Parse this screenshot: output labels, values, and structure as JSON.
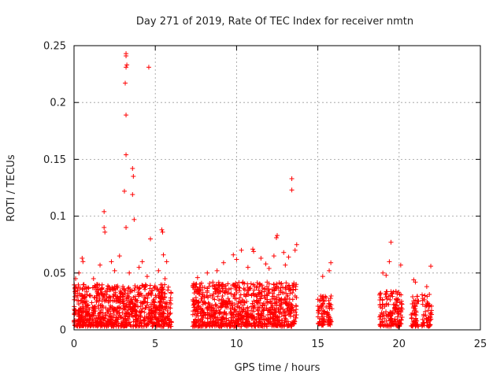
{
  "chart_data": {
    "type": "scatter",
    "title": "Day 271 of 2019, Rate Of TEC Index for receiver nmtn",
    "xlabel": "GPS time / hours",
    "ylabel": "ROTI / TECUs",
    "xlim": [
      0,
      25
    ],
    "ylim": [
      0,
      0.25
    ],
    "xticks": [
      0,
      5,
      10,
      15,
      20,
      25
    ],
    "xtick_labels": [
      "0",
      "5",
      "10",
      "15",
      "20",
      "25"
    ],
    "yticks": [
      0,
      0.05,
      0.1,
      0.15,
      0.2,
      0.25
    ],
    "ytick_labels": [
      "0",
      "0.05",
      "0.1",
      "0.15",
      "0.2",
      "0.25"
    ],
    "grid": true,
    "marker": "+",
    "marker_color": "#ff0000",
    "clusters": [
      {
        "x_range": [
          0.0,
          6.0
        ],
        "y_range": [
          0.003,
          0.04
        ],
        "count": 900
      },
      {
        "x_range": [
          7.3,
          13.7
        ],
        "y_range": [
          0.003,
          0.042
        ],
        "count": 900
      },
      {
        "x_range": [
          15.0,
          15.9
        ],
        "y_range": [
          0.004,
          0.03
        ],
        "count": 90
      },
      {
        "x_range": [
          18.8,
          20.2
        ],
        "y_range": [
          0.003,
          0.035
        ],
        "count": 160
      },
      {
        "x_range": [
          20.7,
          21.2
        ],
        "y_range": [
          0.003,
          0.03
        ],
        "count": 50
      },
      {
        "x_range": [
          21.4,
          22.0
        ],
        "y_range": [
          0.003,
          0.032
        ],
        "count": 60
      }
    ],
    "points": [
      {
        "x": 3.2,
        "y": 0.243
      },
      {
        "x": 3.2,
        "y": 0.241
      },
      {
        "x": 3.25,
        "y": 0.233
      },
      {
        "x": 3.2,
        "y": 0.231
      },
      {
        "x": 3.15,
        "y": 0.217
      },
      {
        "x": 4.6,
        "y": 0.231
      },
      {
        "x": 3.2,
        "y": 0.189
      },
      {
        "x": 3.2,
        "y": 0.154
      },
      {
        "x": 3.6,
        "y": 0.142
      },
      {
        "x": 3.65,
        "y": 0.135
      },
      {
        "x": 3.1,
        "y": 0.122
      },
      {
        "x": 3.6,
        "y": 0.119
      },
      {
        "x": 3.7,
        "y": 0.097
      },
      {
        "x": 1.85,
        "y": 0.104
      },
      {
        "x": 1.85,
        "y": 0.09
      },
      {
        "x": 1.9,
        "y": 0.086
      },
      {
        "x": 3.2,
        "y": 0.09
      },
      {
        "x": 4.7,
        "y": 0.08
      },
      {
        "x": 5.4,
        "y": 0.088
      },
      {
        "x": 5.45,
        "y": 0.086
      },
      {
        "x": 0.5,
        "y": 0.063
      },
      {
        "x": 0.55,
        "y": 0.06
      },
      {
        "x": 1.6,
        "y": 0.057
      },
      {
        "x": 2.3,
        "y": 0.06
      },
      {
        "x": 2.8,
        "y": 0.065
      },
      {
        "x": 4.2,
        "y": 0.06
      },
      {
        "x": 5.5,
        "y": 0.066
      },
      {
        "x": 5.7,
        "y": 0.06
      },
      {
        "x": 13.4,
        "y": 0.133
      },
      {
        "x": 13.4,
        "y": 0.123
      },
      {
        "x": 12.5,
        "y": 0.083
      },
      {
        "x": 12.45,
        "y": 0.081
      },
      {
        "x": 13.7,
        "y": 0.075
      },
      {
        "x": 13.6,
        "y": 0.07
      },
      {
        "x": 11.0,
        "y": 0.071
      },
      {
        "x": 11.05,
        "y": 0.069
      },
      {
        "x": 10.3,
        "y": 0.07
      },
      {
        "x": 9.8,
        "y": 0.066
      },
      {
        "x": 12.9,
        "y": 0.068
      },
      {
        "x": 12.3,
        "y": 0.065
      },
      {
        "x": 10.0,
        "y": 0.062
      },
      {
        "x": 9.2,
        "y": 0.059
      },
      {
        "x": 11.5,
        "y": 0.063
      },
      {
        "x": 13.2,
        "y": 0.064
      },
      {
        "x": 8.2,
        "y": 0.05
      },
      {
        "x": 7.6,
        "y": 0.046
      },
      {
        "x": 19.5,
        "y": 0.077
      },
      {
        "x": 19.4,
        "y": 0.06
      },
      {
        "x": 15.8,
        "y": 0.059
      },
      {
        "x": 15.7,
        "y": 0.052
      },
      {
        "x": 15.3,
        "y": 0.047
      },
      {
        "x": 20.1,
        "y": 0.057
      },
      {
        "x": 21.95,
        "y": 0.056
      },
      {
        "x": 20.9,
        "y": 0.044
      },
      {
        "x": 21.0,
        "y": 0.042
      },
      {
        "x": 19.0,
        "y": 0.05
      },
      {
        "x": 19.2,
        "y": 0.048
      },
      {
        "x": 21.7,
        "y": 0.038
      },
      {
        "x": 0.1,
        "y": 0.045
      },
      {
        "x": 0.3,
        "y": 0.05
      },
      {
        "x": 1.2,
        "y": 0.045
      },
      {
        "x": 2.5,
        "y": 0.052
      },
      {
        "x": 3.4,
        "y": 0.05
      },
      {
        "x": 4.0,
        "y": 0.055
      },
      {
        "x": 4.5,
        "y": 0.047
      },
      {
        "x": 5.2,
        "y": 0.052
      },
      {
        "x": 5.6,
        "y": 0.045
      },
      {
        "x": 8.8,
        "y": 0.052
      },
      {
        "x": 10.7,
        "y": 0.055
      },
      {
        "x": 11.8,
        "y": 0.058
      },
      {
        "x": 12.0,
        "y": 0.054
      },
      {
        "x": 13.0,
        "y": 0.057
      }
    ]
  }
}
